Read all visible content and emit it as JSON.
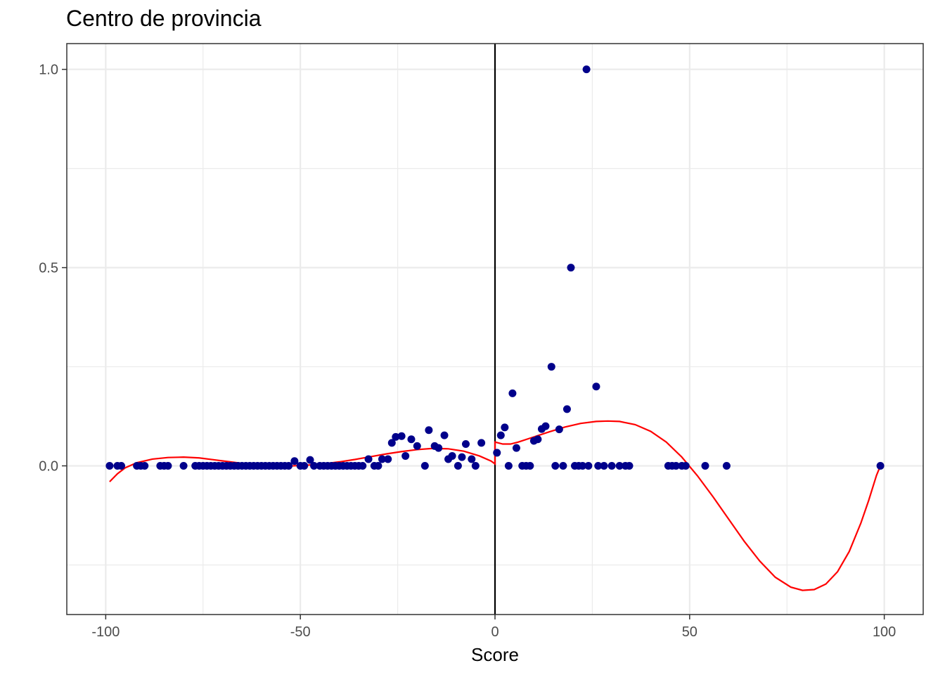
{
  "chart_data": {
    "type": "scatter",
    "title": "Centro de provincia",
    "xlabel": "Score",
    "ylabel": "",
    "xlim": [
      -110,
      110
    ],
    "ylim": [
      -0.375,
      1.065
    ],
    "x_ticks": [
      -100,
      -50,
      0,
      50,
      100
    ],
    "x_tick_labels": [
      "-100",
      "-50",
      "0",
      "50",
      "100"
    ],
    "y_ticks": [
      0.0,
      0.5,
      1.0
    ],
    "y_tick_labels": [
      "0.0",
      "0.5",
      "1.0"
    ],
    "grid": true,
    "vline_x": 0,
    "colors": {
      "points": "#00008B",
      "fit_line": "#FF0000",
      "vline": "#000000",
      "grid": "#EBEBEB",
      "panel_border": "#333333"
    },
    "points": [
      [
        -99,
        0
      ],
      [
        -97,
        0
      ],
      [
        -96,
        0
      ],
      [
        -92,
        0
      ],
      [
        -91,
        0
      ],
      [
        -90,
        0
      ],
      [
        -86,
        0
      ],
      [
        -85,
        0
      ],
      [
        -84,
        0
      ],
      [
        -80,
        0
      ],
      [
        -77,
        0
      ],
      [
        -76,
        0
      ],
      [
        -75,
        0
      ],
      [
        -74,
        0
      ],
      [
        -73,
        0
      ],
      [
        -72,
        0
      ],
      [
        -71,
        0
      ],
      [
        -70,
        0
      ],
      [
        -69,
        0
      ],
      [
        -68,
        0
      ],
      [
        -67,
        0
      ],
      [
        -66,
        0
      ],
      [
        -65,
        0
      ],
      [
        -64,
        0
      ],
      [
        -63,
        0
      ],
      [
        -62,
        0
      ],
      [
        -61,
        0
      ],
      [
        -60,
        0
      ],
      [
        -59,
        0
      ],
      [
        -58,
        0
      ],
      [
        -57,
        0
      ],
      [
        -56,
        0
      ],
      [
        -55,
        0
      ],
      [
        -54,
        0
      ],
      [
        -53,
        0
      ],
      [
        -51.5,
        0.012
      ],
      [
        -50,
        0
      ],
      [
        -49,
        0
      ],
      [
        -47.5,
        0.015
      ],
      [
        -46.5,
        0
      ],
      [
        -45,
        0
      ],
      [
        -44,
        0
      ],
      [
        -43,
        0
      ],
      [
        -42,
        0
      ],
      [
        -41,
        0
      ],
      [
        -40,
        0
      ],
      [
        -39,
        0
      ],
      [
        -38,
        0
      ],
      [
        -37,
        0
      ],
      [
        -36,
        0
      ],
      [
        -35,
        0
      ],
      [
        -34,
        0
      ],
      [
        -32.5,
        0.017
      ],
      [
        -31,
        0
      ],
      [
        -30,
        0
      ],
      [
        -29,
        0.017
      ],
      [
        -27.5,
        0.017
      ],
      [
        -26.5,
        0.058
      ],
      [
        -25.5,
        0.073
      ],
      [
        -24,
        0.075
      ],
      [
        -23,
        0.025
      ],
      [
        -21.5,
        0.067
      ],
      [
        -20,
        0.05
      ],
      [
        -18,
        0
      ],
      [
        -17,
        0.09
      ],
      [
        -15.5,
        0.05
      ],
      [
        -14.5,
        0.045
      ],
      [
        -13,
        0.077
      ],
      [
        -12,
        0.017
      ],
      [
        -11,
        0.025
      ],
      [
        -9.5,
        0
      ],
      [
        -8.5,
        0.022
      ],
      [
        -7.5,
        0.055
      ],
      [
        -6,
        0.017
      ],
      [
        -5,
        0
      ],
      [
        -3.5,
        0.058
      ],
      [
        0.5,
        0.033
      ],
      [
        1.5,
        0.077
      ],
      [
        2.5,
        0.097
      ],
      [
        3.5,
        0
      ],
      [
        4.5,
        0.183
      ],
      [
        5.5,
        0.045
      ],
      [
        7,
        0
      ],
      [
        8,
        0
      ],
      [
        9,
        0
      ],
      [
        10,
        0.063
      ],
      [
        11,
        0.067
      ],
      [
        12,
        0.093
      ],
      [
        13,
        0.1
      ],
      [
        14.5,
        0.25
      ],
      [
        15.5,
        0
      ],
      [
        16.5,
        0.092
      ],
      [
        17.5,
        0
      ],
      [
        18.5,
        0.143
      ],
      [
        19.5,
        0.5
      ],
      [
        20.5,
        0
      ],
      [
        21.5,
        0
      ],
      [
        22.5,
        0
      ],
      [
        23.5,
        1.0
      ],
      [
        24,
        0
      ],
      [
        26,
        0.2
      ],
      [
        26.5,
        0
      ],
      [
        28,
        0
      ],
      [
        30,
        0
      ],
      [
        32,
        0
      ],
      [
        33.5,
        0
      ],
      [
        34.5,
        0
      ],
      [
        44.5,
        0
      ],
      [
        45.5,
        0
      ],
      [
        46.5,
        0
      ],
      [
        48,
        0
      ],
      [
        49,
        0
      ],
      [
        54,
        0
      ],
      [
        59.5,
        0
      ],
      [
        99,
        0
      ]
    ],
    "fit_line": [
      [
        -99,
        -0.04
      ],
      [
        -97,
        -0.02
      ],
      [
        -95,
        -0.005
      ],
      [
        -92,
        0.008
      ],
      [
        -88,
        0.017
      ],
      [
        -84,
        0.021
      ],
      [
        -80,
        0.022
      ],
      [
        -76,
        0.02
      ],
      [
        -72,
        0.015
      ],
      [
        -68,
        0.01
      ],
      [
        -64,
        0.005
      ],
      [
        -60,
        0.002
      ],
      [
        -56,
        0
      ],
      [
        -52,
        0
      ],
      [
        -48,
        0.002
      ],
      [
        -44,
        0.005
      ],
      [
        -40,
        0.01
      ],
      [
        -36,
        0.016
      ],
      [
        -32,
        0.023
      ],
      [
        -28,
        0.03
      ],
      [
        -24,
        0.036
      ],
      [
        -20,
        0.041
      ],
      [
        -16,
        0.044
      ],
      [
        -12,
        0.043
      ],
      [
        -8,
        0.037
      ],
      [
        -4,
        0.025
      ],
      [
        -1,
        0.012
      ],
      [
        0,
        0.005
      ],
      [
        0,
        0.06
      ],
      [
        2,
        0.055
      ],
      [
        4,
        0.055
      ],
      [
        6,
        0.06
      ],
      [
        10,
        0.073
      ],
      [
        14,
        0.086
      ],
      [
        18,
        0.098
      ],
      [
        22,
        0.107
      ],
      [
        26,
        0.112
      ],
      [
        29,
        0.113
      ],
      [
        32,
        0.112
      ],
      [
        36,
        0.104
      ],
      [
        40,
        0.087
      ],
      [
        44,
        0.06
      ],
      [
        48,
        0.022
      ],
      [
        52,
        -0.025
      ],
      [
        56,
        -0.078
      ],
      [
        60,
        -0.134
      ],
      [
        64,
        -0.19
      ],
      [
        68,
        -0.24
      ],
      [
        72,
        -0.281
      ],
      [
        76,
        -0.306
      ],
      [
        79,
        -0.314
      ],
      [
        82,
        -0.312
      ],
      [
        85,
        -0.298
      ],
      [
        88,
        -0.267
      ],
      [
        91,
        -0.216
      ],
      [
        94,
        -0.144
      ],
      [
        96,
        -0.087
      ],
      [
        98,
        -0.024
      ],
      [
        99,
        0.0
      ]
    ]
  }
}
